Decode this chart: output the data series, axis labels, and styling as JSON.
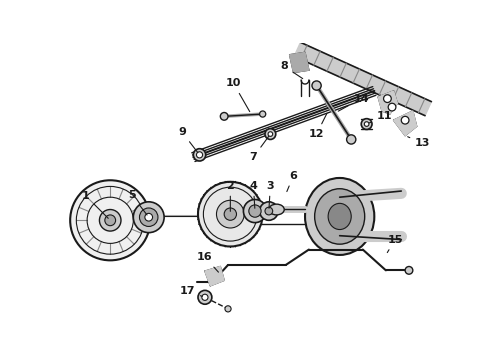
{
  "bg_color": "#ffffff",
  "line_color": "#1a1a1a",
  "gray1": "#888888",
  "gray2": "#aaaaaa",
  "gray3": "#cccccc",
  "figsize": [
    4.9,
    3.6
  ],
  "dpi": 100
}
